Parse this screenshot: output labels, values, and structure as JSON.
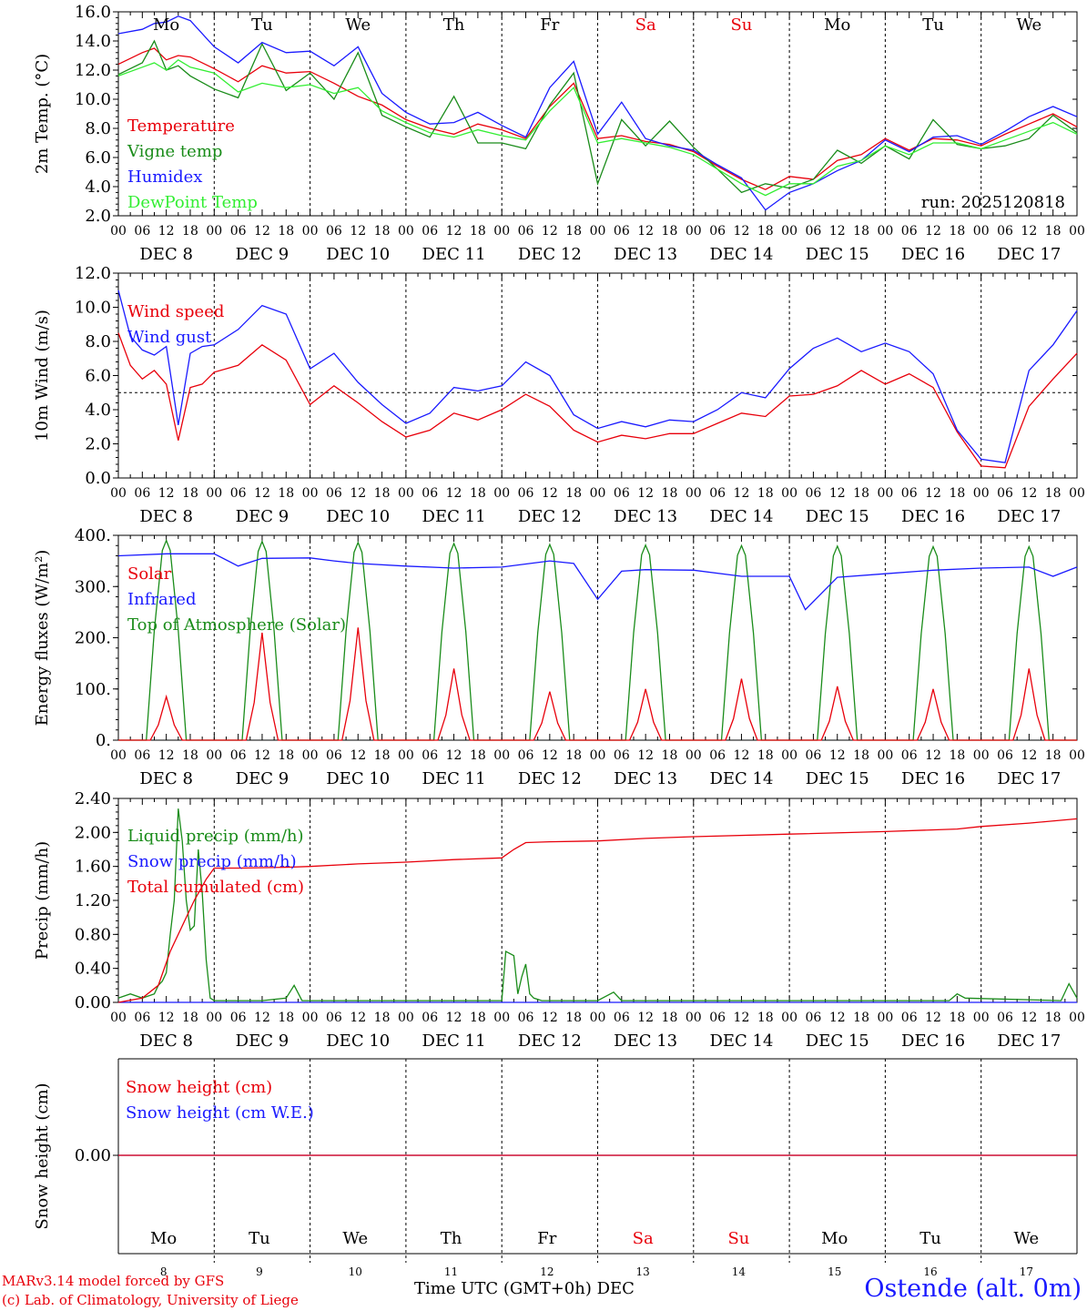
{
  "run_label": "run: 2025120818",
  "footer": {
    "model": "MARv3.14 model forced by GFS",
    "credit": "(c) Lab. of Climatology, University of Liege",
    "time_axis": "Time UTC (GMT+0h) DEC",
    "station": "Ostende (alt. 0m)"
  },
  "weekdays": [
    "Mo",
    "Tu",
    "We",
    "Th",
    "Fr",
    "Sa",
    "Su",
    "Mo",
    "Tu",
    "We"
  ],
  "weekend_indices": [
    5,
    6
  ],
  "date_labels": [
    "DEC  8",
    "DEC  9",
    "DEC 10",
    "DEC 11",
    "DEC 12",
    "DEC 13",
    "DEC 14",
    "DEC 15",
    "DEC 16",
    "DEC 17"
  ],
  "hour_ticks": [
    "00",
    "06",
    "12",
    "18"
  ],
  "bottom_days": [
    "8",
    "9",
    "10",
    "11",
    "12",
    "13",
    "14",
    "15",
    "16",
    "17"
  ],
  "colors": {
    "red": "#e8000b",
    "green": "#1a8c1a",
    "blue": "#1a1aff",
    "light_green": "#33ee33",
    "axis": "#000000"
  },
  "chart_data": [
    {
      "type": "line",
      "title": "",
      "ylabel": "2m Temp. (°C)",
      "ylim": [
        2.0,
        16.0
      ],
      "y_ticks": [
        "2.0",
        "4.0",
        "6.0",
        "8.0",
        "10.0",
        "12.0",
        "14.0",
        "16.0"
      ],
      "x_unit": "hours since DEC 8 00 UTC",
      "x": [
        0,
        6,
        9,
        12,
        15,
        18,
        24,
        30,
        36,
        42,
        48,
        54,
        60,
        66,
        72,
        78,
        84,
        90,
        96,
        102,
        108,
        114,
        120,
        126,
        132,
        138,
        144,
        150,
        156,
        162,
        168,
        174,
        180,
        186,
        192,
        198,
        204,
        210,
        216,
        222,
        228,
        234,
        240
      ],
      "series": [
        {
          "name": "Temperature",
          "color": "red",
          "values": [
            12.4,
            13.2,
            13.5,
            12.7,
            13.0,
            12.9,
            12.1,
            11.2,
            12.3,
            11.8,
            11.9,
            11.1,
            10.2,
            9.6,
            8.6,
            8.0,
            7.6,
            8.3,
            7.9,
            7.3,
            9.5,
            11.1,
            7.3,
            7.5,
            7.1,
            6.9,
            6.4,
            5.4,
            4.5,
            3.8,
            4.7,
            4.5,
            5.8,
            6.2,
            7.3,
            6.5,
            7.3,
            7.2,
            6.8,
            7.6,
            8.3,
            9.0,
            8.1
          ]
        },
        {
          "name": "Vigne temp",
          "color": "green",
          "values": [
            11.7,
            12.5,
            14.0,
            12.0,
            12.3,
            11.6,
            10.7,
            10.1,
            13.8,
            10.6,
            11.8,
            10.0,
            13.2,
            8.9,
            8.1,
            7.4,
            10.2,
            7.0,
            7.0,
            6.6,
            9.6,
            11.8,
            4.2,
            8.6,
            6.8,
            8.5,
            6.7,
            5.2,
            3.6,
            4.2,
            3.9,
            4.5,
            6.5,
            5.6,
            6.8,
            5.9,
            8.6,
            6.9,
            6.6,
            6.8,
            7.3,
            8.9,
            7.7
          ]
        },
        {
          "name": "Humidex",
          "color": "blue",
          "values": [
            14.5,
            14.8,
            15.2,
            15.3,
            15.7,
            15.4,
            13.6,
            12.5,
            13.9,
            13.2,
            13.3,
            12.3,
            13.6,
            10.4,
            9.1,
            8.3,
            8.4,
            9.1,
            8.2,
            7.4,
            10.8,
            12.6,
            7.6,
            9.8,
            7.3,
            6.8,
            6.5,
            5.5,
            4.6,
            2.4,
            3.6,
            4.2,
            5.1,
            5.8,
            7.2,
            6.4,
            7.4,
            7.5,
            6.9,
            7.8,
            8.8,
            9.5,
            8.8
          ]
        },
        {
          "name": "DewPoint Temp",
          "color": "light_green",
          "values": [
            11.6,
            12.2,
            12.5,
            12.0,
            12.7,
            12.2,
            11.8,
            10.5,
            11.1,
            10.8,
            11.0,
            10.4,
            10.8,
            9.2,
            8.4,
            7.7,
            7.4,
            7.9,
            7.5,
            7.2,
            9.2,
            10.8,
            7.0,
            7.3,
            7.0,
            6.7,
            6.2,
            5.2,
            4.2,
            3.4,
            4.2,
            4.2,
            5.4,
            5.8,
            6.8,
            6.2,
            7.0,
            7.0,
            6.6,
            7.2,
            7.8,
            8.4,
            7.6
          ]
        }
      ]
    },
    {
      "type": "line",
      "title": "",
      "ylabel": "10m Wind (m/s)",
      "ylim": [
        0.0,
        12.0
      ],
      "y_ticks": [
        "0.0",
        "2.0",
        "4.0",
        "6.0",
        "8.0",
        "10.0",
        "12.0"
      ],
      "reference_line": 5.0,
      "x_unit": "hours since DEC 8 00 UTC",
      "x": [
        0,
        3,
        6,
        9,
        12,
        15,
        18,
        21,
        24,
        30,
        36,
        42,
        48,
        54,
        60,
        66,
        72,
        78,
        84,
        90,
        96,
        102,
        108,
        114,
        120,
        126,
        132,
        138,
        144,
        150,
        156,
        162,
        168,
        174,
        180,
        186,
        192,
        198,
        204,
        210,
        216,
        222,
        228,
        234,
        240
      ],
      "series": [
        {
          "name": "Wind speed",
          "color": "red",
          "values": [
            8.5,
            6.6,
            5.8,
            6.3,
            5.5,
            2.2,
            5.3,
            5.5,
            6.2,
            6.6,
            7.8,
            6.9,
            4.3,
            5.4,
            4.4,
            3.3,
            2.4,
            2.8,
            3.8,
            3.4,
            4.0,
            4.9,
            4.2,
            2.8,
            2.1,
            2.5,
            2.3,
            2.6,
            2.6,
            3.2,
            3.8,
            3.6,
            4.8,
            4.9,
            5.4,
            6.3,
            5.5,
            6.1,
            5.3,
            2.7,
            0.7,
            0.6,
            4.2,
            5.8,
            7.3
          ]
        },
        {
          "name": "Wind gust",
          "color": "blue",
          "values": [
            11.0,
            8.3,
            7.5,
            7.2,
            7.7,
            3.1,
            7.3,
            7.7,
            7.8,
            8.7,
            10.1,
            9.6,
            6.4,
            7.3,
            5.6,
            4.3,
            3.2,
            3.8,
            5.3,
            5.1,
            5.4,
            6.8,
            6.0,
            3.7,
            2.9,
            3.3,
            3.0,
            3.4,
            3.3,
            4.0,
            5.0,
            4.7,
            6.4,
            7.6,
            8.2,
            7.4,
            7.9,
            7.4,
            6.1,
            2.8,
            1.1,
            0.9,
            6.3,
            7.8,
            9.8
          ]
        }
      ]
    },
    {
      "type": "line",
      "title": "",
      "ylabel": "Energy fluxes (W/m²)",
      "ylim": [
        0,
        400
      ],
      "y_ticks": [
        "0.",
        "100.",
        "200.",
        "300.",
        "400."
      ],
      "x_unit": "hours since DEC 8 00 UTC",
      "series": [
        {
          "name": "Solar",
          "color": "red",
          "daily_peak_hour": 12,
          "daily_peaks": [
            85,
            210,
            220,
            140,
            95,
            100,
            120,
            105,
            100,
            140
          ]
        },
        {
          "name": "Infrared",
          "color": "blue",
          "x": [
            0,
            12,
            24,
            30,
            36,
            48,
            54,
            60,
            72,
            84,
            96,
            108,
            114,
            120,
            126,
            132,
            144,
            156,
            168,
            172,
            180,
            192,
            204,
            216,
            228,
            234,
            240
          ],
          "values": [
            360,
            364,
            364,
            340,
            355,
            356,
            350,
            345,
            340,
            336,
            338,
            350,
            345,
            275,
            330,
            333,
            332,
            320,
            320,
            255,
            318,
            325,
            332,
            336,
            338,
            320,
            338
          ]
        },
        {
          "name": "Top of Atmosphere (Solar)",
          "color": "green",
          "daily_peak_hour": 12,
          "daily_peaks": [
            390,
            388,
            386,
            384,
            382,
            381,
            380,
            379,
            378,
            378
          ]
        }
      ]
    },
    {
      "type": "line",
      "title": "",
      "ylabel": "Precip (mm/h)",
      "ylim": [
        0.0,
        2.4
      ],
      "y_ticks": [
        "0.00",
        "0.40",
        "0.80",
        "1.20",
        "1.60",
        "2.00",
        "2.40"
      ],
      "x_unit": "hours since DEC 8 00 UTC",
      "series": [
        {
          "name": "Liquid precip (mm/h)",
          "color": "green",
          "x": [
            0,
            3,
            6,
            9,
            10,
            11,
            12,
            13,
            14,
            15,
            16,
            17,
            18,
            19,
            20,
            21,
            22,
            23,
            24,
            26,
            28,
            36,
            42,
            44,
            46,
            60,
            72,
            96,
            97,
            99,
            100,
            101,
            102,
            103,
            104,
            106,
            120,
            124,
            126,
            132,
            156,
            168,
            208,
            210,
            212,
            236,
            238,
            240
          ],
          "values": [
            0.05,
            0.1,
            0.05,
            0.1,
            0.2,
            0.25,
            0.35,
            0.8,
            1.2,
            2.28,
            1.9,
            1.2,
            0.85,
            0.9,
            1.8,
            1.3,
            0.5,
            0.05,
            0.02,
            0.02,
            0.02,
            0.02,
            0.05,
            0.2,
            0.02,
            0.02,
            0.02,
            0.02,
            0.6,
            0.55,
            0.1,
            0.3,
            0.45,
            0.1,
            0.05,
            0.02,
            0.02,
            0.12,
            0.02,
            0.02,
            0.02,
            0.02,
            0.02,
            0.1,
            0.05,
            0.02,
            0.22,
            0.05
          ]
        },
        {
          "name": "Snow precip (mm/h)",
          "color": "blue",
          "x": [
            0,
            240
          ],
          "values": [
            0.0,
            0.0
          ]
        },
        {
          "name": "Total cumulated (cm)",
          "color": "red",
          "x": [
            0,
            6,
            10,
            13,
            16,
            19,
            22,
            24,
            30,
            42,
            48,
            60,
            72,
            84,
            96,
            99,
            102,
            108,
            120,
            132,
            144,
            168,
            192,
            210,
            216,
            228,
            240
          ],
          "values": [
            0.0,
            0.05,
            0.2,
            0.6,
            0.9,
            1.2,
            1.45,
            1.58,
            1.58,
            1.59,
            1.6,
            1.63,
            1.65,
            1.68,
            1.7,
            1.8,
            1.88,
            1.89,
            1.9,
            1.93,
            1.95,
            1.98,
            2.01,
            2.04,
            2.07,
            2.11,
            2.16
          ]
        }
      ]
    },
    {
      "type": "line",
      "title": "",
      "ylabel": "Snow height (cm)",
      "y_ticks": [
        "0.00"
      ],
      "x_unit": "hours since DEC 8 00 UTC",
      "series": [
        {
          "name": "Snow height (cm)",
          "color": "red",
          "x": [
            0,
            240
          ],
          "values": [
            0.0,
            0.0
          ]
        },
        {
          "name": "Snow height (cm W.E.)",
          "color": "blue",
          "x": [
            0,
            240
          ],
          "values": [
            0.0,
            0.0
          ]
        }
      ]
    }
  ]
}
